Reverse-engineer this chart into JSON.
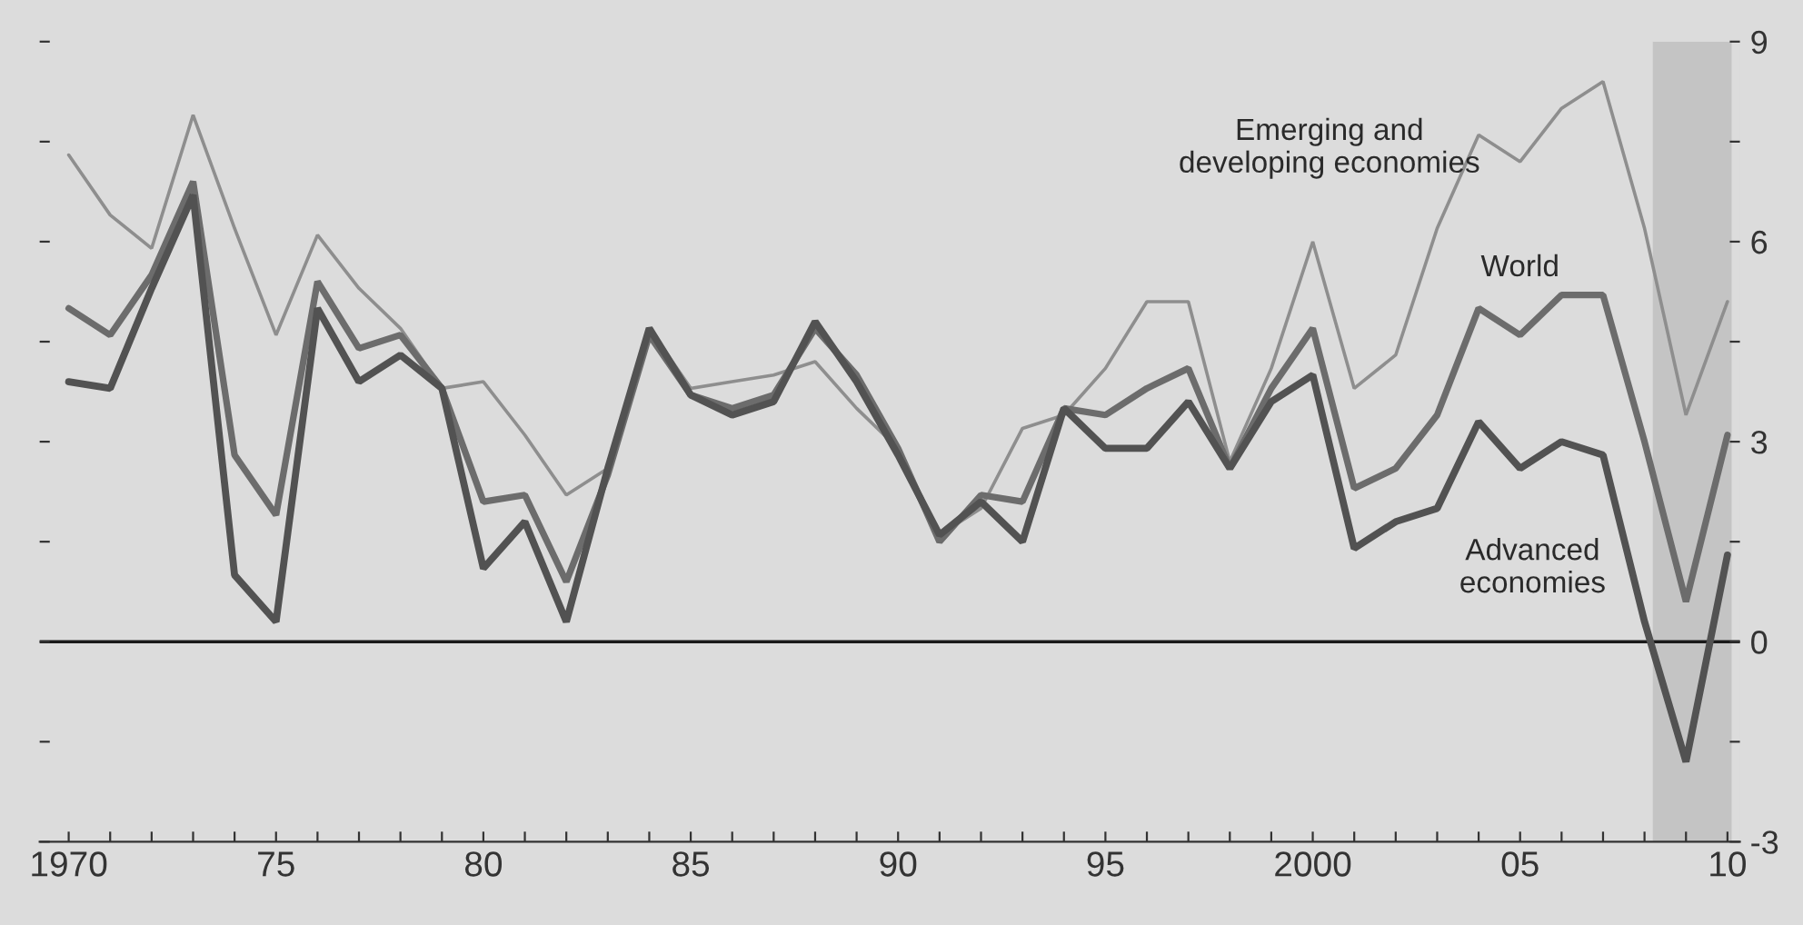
{
  "chart_data": {
    "type": "line",
    "x": [
      1970,
      1971,
      1972,
      1973,
      1974,
      1975,
      1976,
      1977,
      1978,
      1979,
      1980,
      1981,
      1982,
      1983,
      1984,
      1985,
      1986,
      1987,
      1988,
      1989,
      1990,
      1991,
      1992,
      1993,
      1994,
      1995,
      1996,
      1997,
      1998,
      1999,
      2000,
      2001,
      2002,
      2003,
      2004,
      2005,
      2006,
      2007,
      2008,
      2009,
      2010
    ],
    "series": [
      {
        "name": "Emerging and developing economies",
        "color": "#8e8e8e",
        "values": [
          7.3,
          6.4,
          5.9,
          7.9,
          6.2,
          4.6,
          6.1,
          5.3,
          4.7,
          3.8,
          3.9,
          3.1,
          2.2,
          2.6,
          4.7,
          3.8,
          3.9,
          4.0,
          4.2,
          3.5,
          2.9,
          1.6,
          2.0,
          3.2,
          3.4,
          4.1,
          5.1,
          5.1,
          2.7,
          4.1,
          6.0,
          3.8,
          4.3,
          6.2,
          7.6,
          7.2,
          8.0,
          8.4,
          6.2,
          3.4,
          5.1
        ]
      },
      {
        "name": "World",
        "color": "#6c6c6c",
        "values": [
          5.0,
          4.6,
          5.5,
          6.9,
          2.8,
          1.9,
          5.4,
          4.4,
          4.6,
          3.8,
          2.1,
          2.2,
          0.9,
          2.5,
          4.6,
          3.7,
          3.5,
          3.7,
          4.7,
          4.0,
          2.9,
          1.5,
          2.2,
          2.1,
          3.5,
          3.4,
          3.8,
          4.1,
          2.6,
          3.8,
          4.7,
          2.3,
          2.6,
          3.4,
          5.0,
          4.6,
          5.2,
          5.2,
          3.0,
          0.6,
          3.1
        ]
      },
      {
        "name": "Advanced economies",
        "color": "#525252",
        "values": [
          3.9,
          3.8,
          5.3,
          6.7,
          1.0,
          0.3,
          5.0,
          3.9,
          4.3,
          3.8,
          1.1,
          1.8,
          0.3,
          2.6,
          4.7,
          3.7,
          3.4,
          3.6,
          4.8,
          3.9,
          2.8,
          1.6,
          2.1,
          1.5,
          3.5,
          2.9,
          2.9,
          3.6,
          2.6,
          3.6,
          4.0,
          1.4,
          1.8,
          2.0,
          3.3,
          2.6,
          3.0,
          2.8,
          0.3,
          -1.8,
          1.3
        ]
      }
    ],
    "xlim": [
      1969.3,
      2010.3
    ],
    "xticks": [
      {
        "value": 1970,
        "label": "1970"
      },
      {
        "value": 1971,
        "label": null
      },
      {
        "value": 1972,
        "label": null
      },
      {
        "value": 1973,
        "label": null
      },
      {
        "value": 1974,
        "label": null
      },
      {
        "value": 1975,
        "label": "75"
      },
      {
        "value": 1976,
        "label": null
      },
      {
        "value": 1977,
        "label": null
      },
      {
        "value": 1978,
        "label": null
      },
      {
        "value": 1979,
        "label": null
      },
      {
        "value": 1980,
        "label": "80"
      },
      {
        "value": 1981,
        "label": null
      },
      {
        "value": 1982,
        "label": null
      },
      {
        "value": 1983,
        "label": null
      },
      {
        "value": 1984,
        "label": null
      },
      {
        "value": 1985,
        "label": "85"
      },
      {
        "value": 1986,
        "label": null
      },
      {
        "value": 1987,
        "label": null
      },
      {
        "value": 1988,
        "label": null
      },
      {
        "value": 1989,
        "label": null
      },
      {
        "value": 1990,
        "label": "90"
      },
      {
        "value": 1991,
        "label": null
      },
      {
        "value": 1992,
        "label": null
      },
      {
        "value": 1993,
        "label": null
      },
      {
        "value": 1994,
        "label": null
      },
      {
        "value": 1995,
        "label": "95"
      },
      {
        "value": 1996,
        "label": null
      },
      {
        "value": 1997,
        "label": null
      },
      {
        "value": 1998,
        "label": null
      },
      {
        "value": 1999,
        "label": null
      },
      {
        "value": 2000,
        "label": "2000"
      },
      {
        "value": 2001,
        "label": null
      },
      {
        "value": 2002,
        "label": null
      },
      {
        "value": 2003,
        "label": null
      },
      {
        "value": 2004,
        "label": null
      },
      {
        "value": 2005,
        "label": "05"
      },
      {
        "value": 2006,
        "label": null
      },
      {
        "value": 2007,
        "label": null
      },
      {
        "value": 2008,
        "label": null
      },
      {
        "value": 2009,
        "label": null
      },
      {
        "value": 2010,
        "label": "10"
      }
    ],
    "ylim": [
      -3,
      9
    ],
    "yticks": [
      {
        "value": -3,
        "label": "-3"
      },
      {
        "value": -1.5,
        "label": null
      },
      0,
      {
        "value": 1.5,
        "label": null
      },
      3,
      {
        "value": 4.5,
        "label": null
      },
      6,
      {
        "value": 7.5,
        "label": null
      },
      9
    ],
    "ref_lines": [
      {
        "axis": "y",
        "value": 0,
        "color": "#1a1a1a"
      }
    ],
    "bands": [
      {
        "axis": "x",
        "from": 2008.2,
        "to": 2010.1,
        "color": "#c4c4c4"
      }
    ],
    "grid": false,
    "legend": false,
    "marker": "none",
    "line_style": "solid"
  }
}
